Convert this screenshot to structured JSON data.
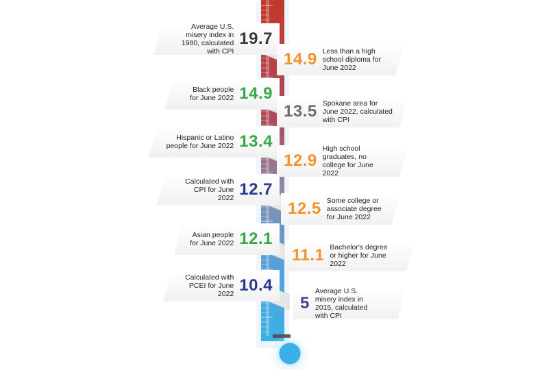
{
  "chart_data": {
    "type": "thermometer",
    "items": [
      {
        "value": "19.7",
        "label": "Average U.S. misery index in 1980, calculated with CPI",
        "color": "#3a3a3a"
      },
      {
        "value": "14.9",
        "label": "Less than a high school diploma for June 2022",
        "color": "#f0932b"
      },
      {
        "value": "14.9",
        "label": "Black people for June 2022",
        "color": "#3aa845"
      },
      {
        "value": "13.5",
        "label": "Spokane area for June 2022, calculated with CPI",
        "color": "#6d6d6d"
      },
      {
        "value": "13.4",
        "label": "Hispanic or Latino people for June 2022",
        "color": "#3aa845"
      },
      {
        "value": "12.9",
        "label": "High school graduates, no college for June 2022",
        "color": "#f0932b"
      },
      {
        "value": "12.7",
        "label": "Calculated with CPI for June 2022",
        "color": "#2b3a8c"
      },
      {
        "value": "12.5",
        "label": "Some college or associate degree for June 2022",
        "color": "#f0932b"
      },
      {
        "value": "12.1",
        "label": "Asian people for June 2022",
        "color": "#3aa845"
      },
      {
        "value": "11.1",
        "label": "Bachelor's degree or higher for June 2022",
        "color": "#f0932b"
      },
      {
        "value": "10.4",
        "label": "Calculated with PCEI for June 2022",
        "color": "#2b3a8c"
      },
      {
        "value": "5",
        "label": "Average U.S. misery index in 2015, calculated with CPI",
        "color": "#5b3a8f"
      }
    ]
  },
  "thermometer": {
    "color_top": "#c0392b",
    "color_bottom": "#3ab0e6",
    "color_bulb": "#3ab0e6"
  }
}
